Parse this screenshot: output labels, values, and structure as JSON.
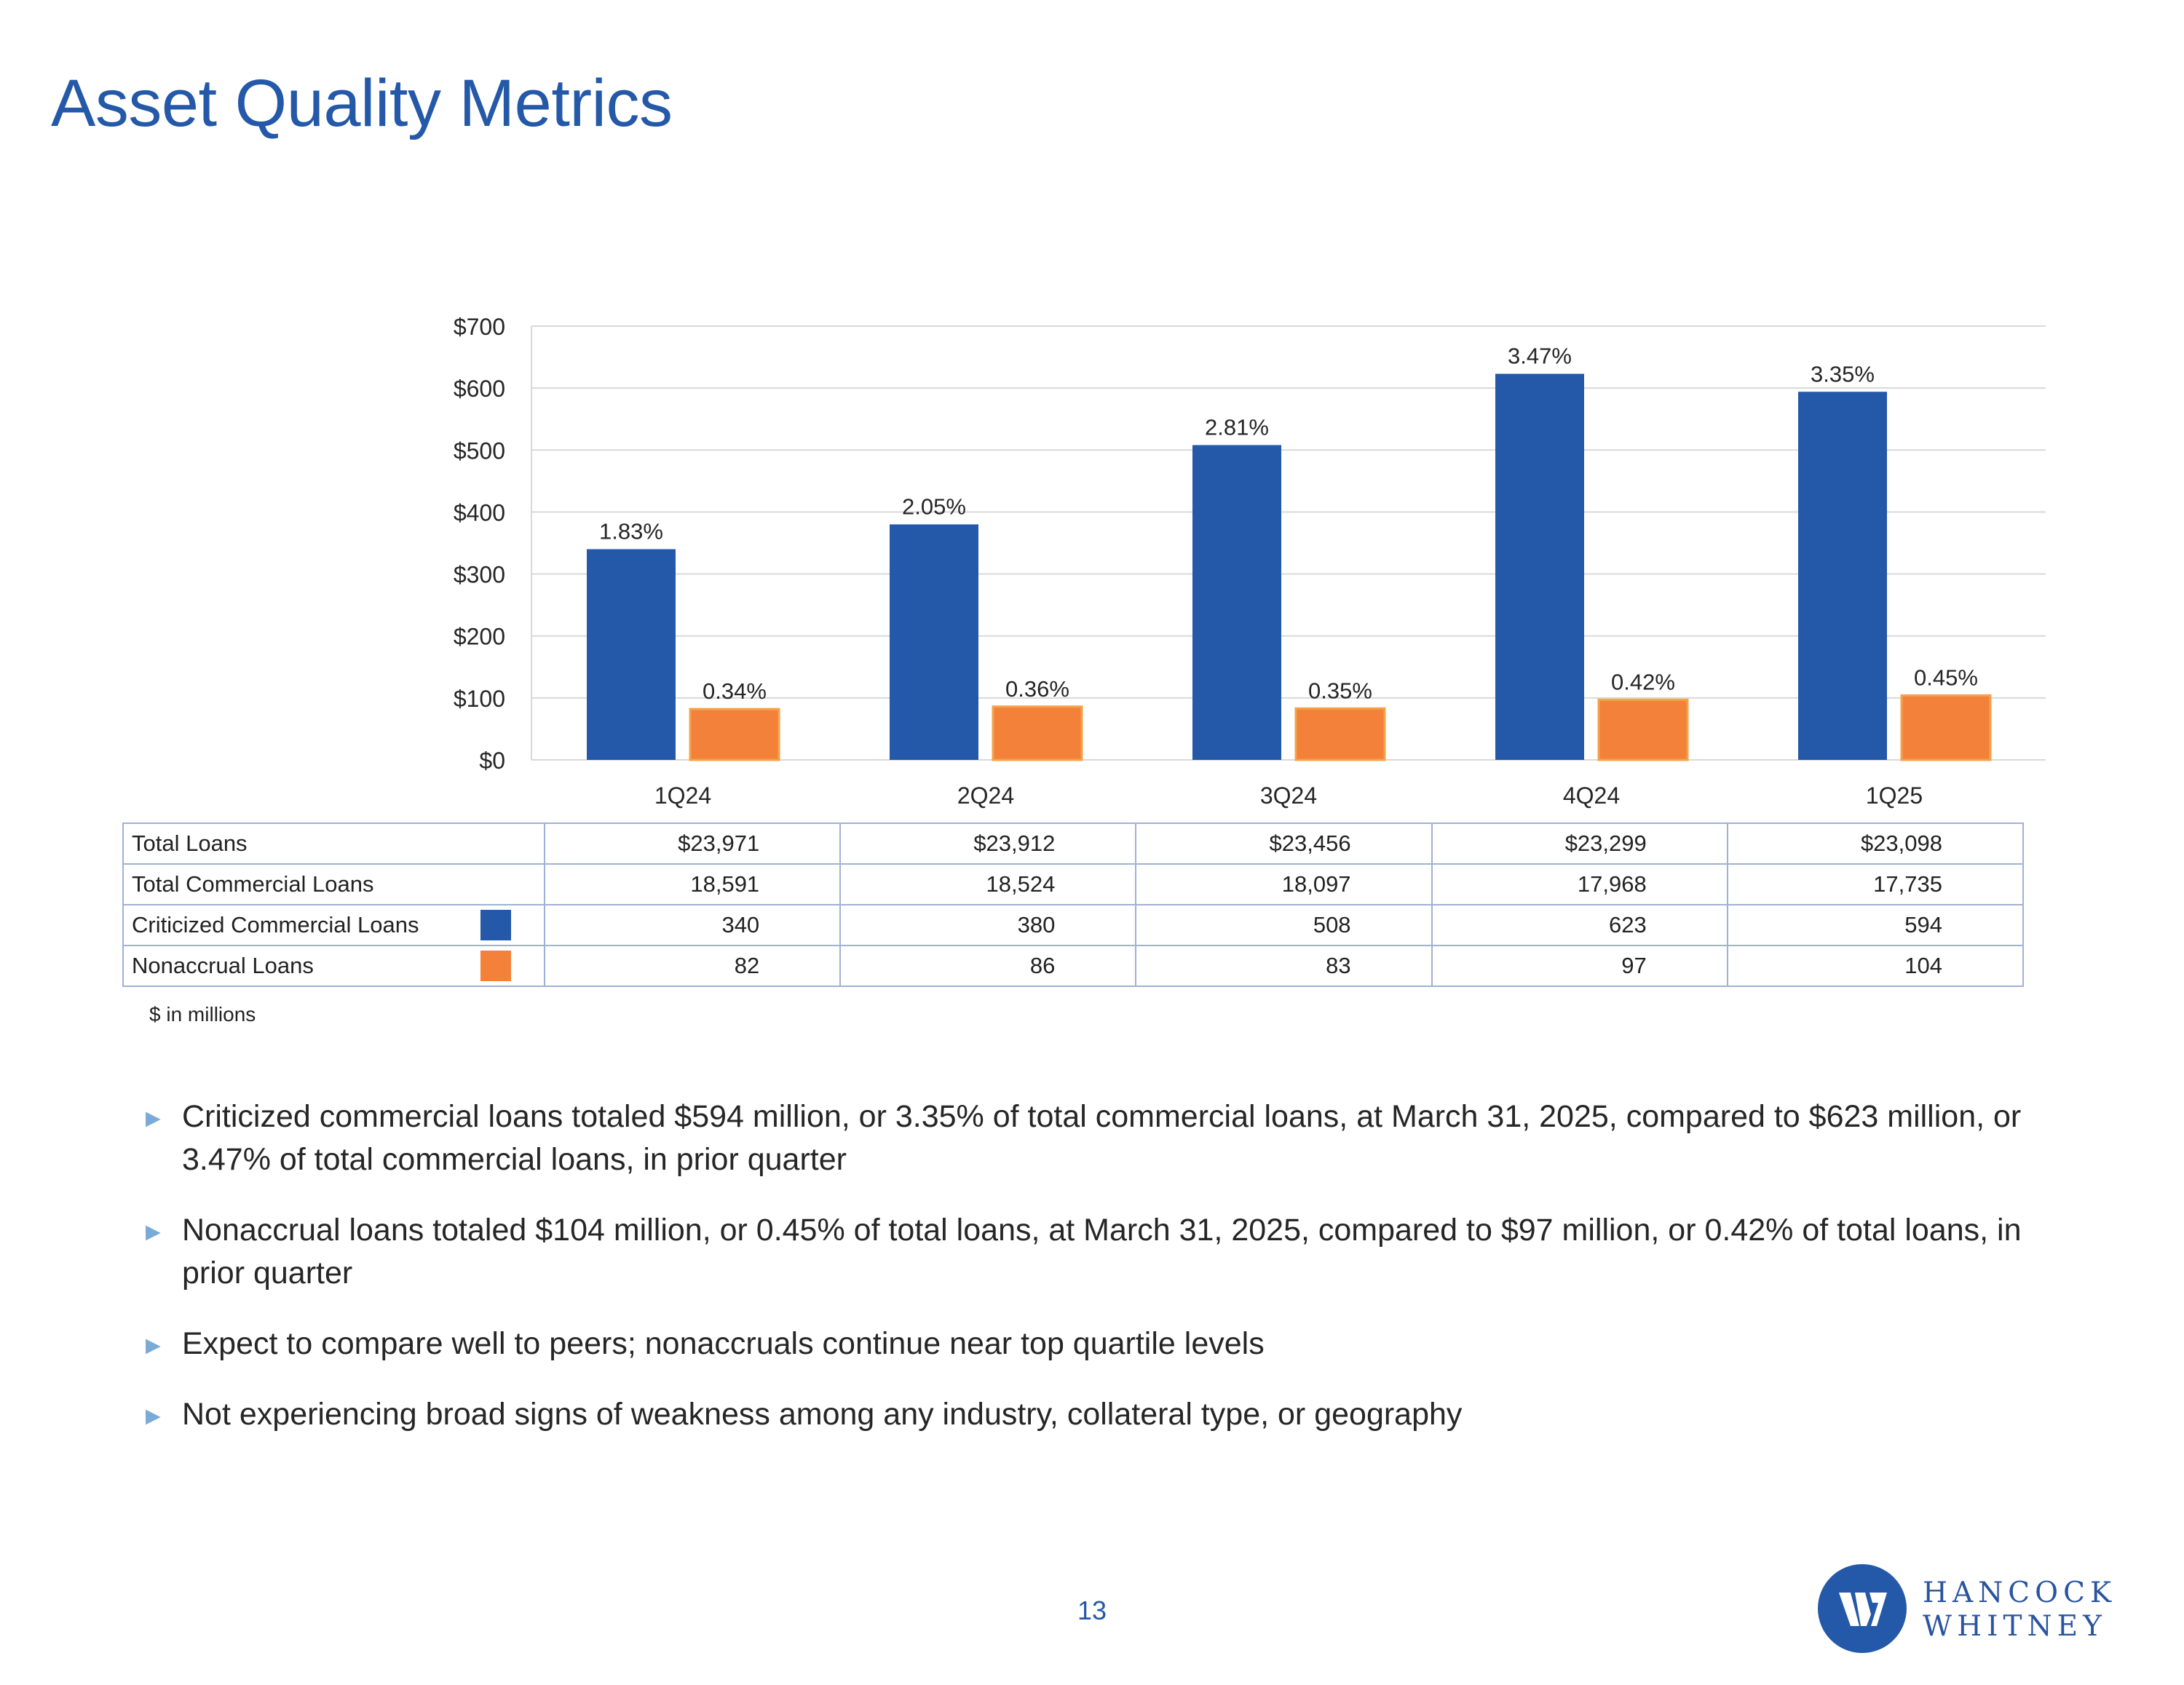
{
  "title": "Asset Quality Metrics",
  "colors": {
    "criticized": "#2458a8",
    "nonaccrual": "#f4813a",
    "accent": "#2458a8",
    "bullet_arrow": "#7aaad8"
  },
  "chart_data": {
    "type": "bar",
    "title": "",
    "xlabel": "",
    "ylabel": "",
    "ylim": [
      0,
      700
    ],
    "yticks": [
      0,
      100,
      200,
      300,
      400,
      500,
      600,
      700
    ],
    "ytick_labels": [
      "$0",
      "$100",
      "$200",
      "$300",
      "$400",
      "$500",
      "$600",
      "$700"
    ],
    "grid": true,
    "categories": [
      "1Q24",
      "2Q24",
      "3Q24",
      "4Q24",
      "1Q25"
    ],
    "series": [
      {
        "name": "Criticized Commercial Loans",
        "values": [
          340,
          380,
          508,
          623,
          594
        ],
        "labels": [
          "1.83%",
          "2.05%",
          "2.81%",
          "3.47%",
          "3.35%"
        ]
      },
      {
        "name": "Nonaccrual Loans",
        "values": [
          82,
          86,
          83,
          97,
          104
        ],
        "labels": [
          "0.34%",
          "0.36%",
          "0.35%",
          "0.42%",
          "0.45%"
        ]
      }
    ]
  },
  "table": {
    "rows": [
      {
        "label": "Total Loans",
        "values": [
          "$23,971",
          "$23,912",
          "$23,456",
          "$23,299",
          "$23,098"
        ]
      },
      {
        "label": "Total Commercial Loans",
        "values": [
          "18,591",
          "18,524",
          "18,097",
          "17,968",
          "17,735"
        ]
      },
      {
        "label": "Criticized Commercial Loans",
        "values": [
          "340",
          "380",
          "508",
          "623",
          "594"
        ]
      },
      {
        "label": "Nonaccrual Loans",
        "values": [
          "82",
          "86",
          "83",
          "97",
          "104"
        ]
      }
    ],
    "note": "$ in millions"
  },
  "bullets": [
    "Criticized commercial loans totaled $594 million, or 3.35% of total commercial loans, at March 31, 2025, compared to $623 million, or 3.47% of total commercial loans, in prior quarter",
    "Nonaccrual loans totaled $104 million, or 0.45% of total loans, at March 31, 2025, compared to $97 million, or 0.42% of total loans, in prior quarter",
    "Expect to compare well to peers; nonaccruals continue near top quartile levels",
    "Not experiencing broad signs of weakness among any industry, collateral type, or geography"
  ],
  "bullet_icon": "triangle-right-icon",
  "page_number": "13",
  "logo": {
    "line1": "HANCOCK",
    "line2": "WHITNEY"
  }
}
